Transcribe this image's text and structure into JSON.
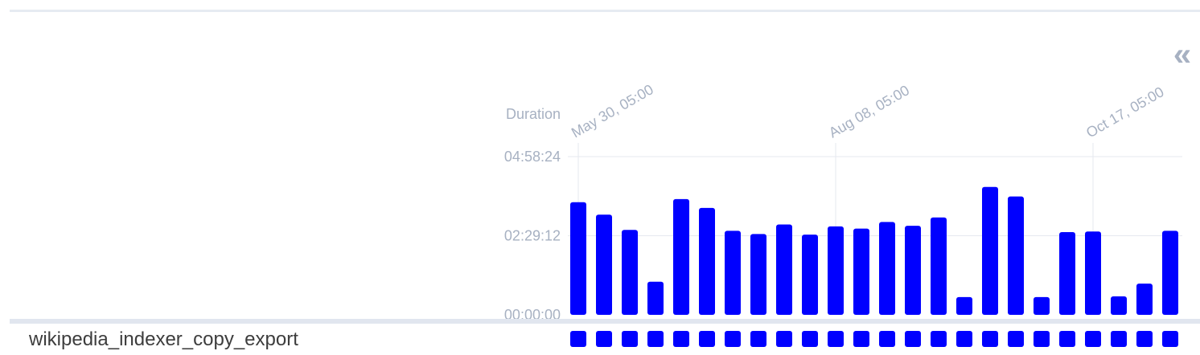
{
  "controls": {
    "collapse_label": "«",
    "collapse_icon": "double-chevron-left-icon"
  },
  "dag_row": {
    "name": "wikipedia_indexer_copy_export"
  },
  "colors": {
    "bar": "#0000ff",
    "status": "#0000ff",
    "grid": "#e6e9ef",
    "axis_text": "#a7b1c2"
  },
  "chart_data": {
    "type": "bar",
    "ylabel": "Duration",
    "y_tick_labels": [
      "04:58:24",
      "02:29:12",
      "00:00:00"
    ],
    "y_ticks_hours": [
      4.9733,
      2.4867,
      0
    ],
    "ylim_hours": [
      0,
      4.9733
    ],
    "x_tick_labels": [
      "May 30, 05:00",
      "Aug 08, 05:00",
      "Oct 17, 05:00"
    ],
    "x_tick_bar_index": [
      0,
      10,
      20
    ],
    "grid": true,
    "series": [
      {
        "values_hours": [
          3.54,
          3.15,
          2.67,
          1.04,
          3.64,
          3.36,
          2.64,
          2.54,
          2.84,
          2.52,
          2.78,
          2.71,
          2.92,
          2.8,
          3.06,
          0.56,
          4.02,
          3.72,
          0.56,
          2.6,
          2.62,
          0.58,
          0.98,
          2.64
        ]
      }
    ],
    "status_row_count": 24
  }
}
